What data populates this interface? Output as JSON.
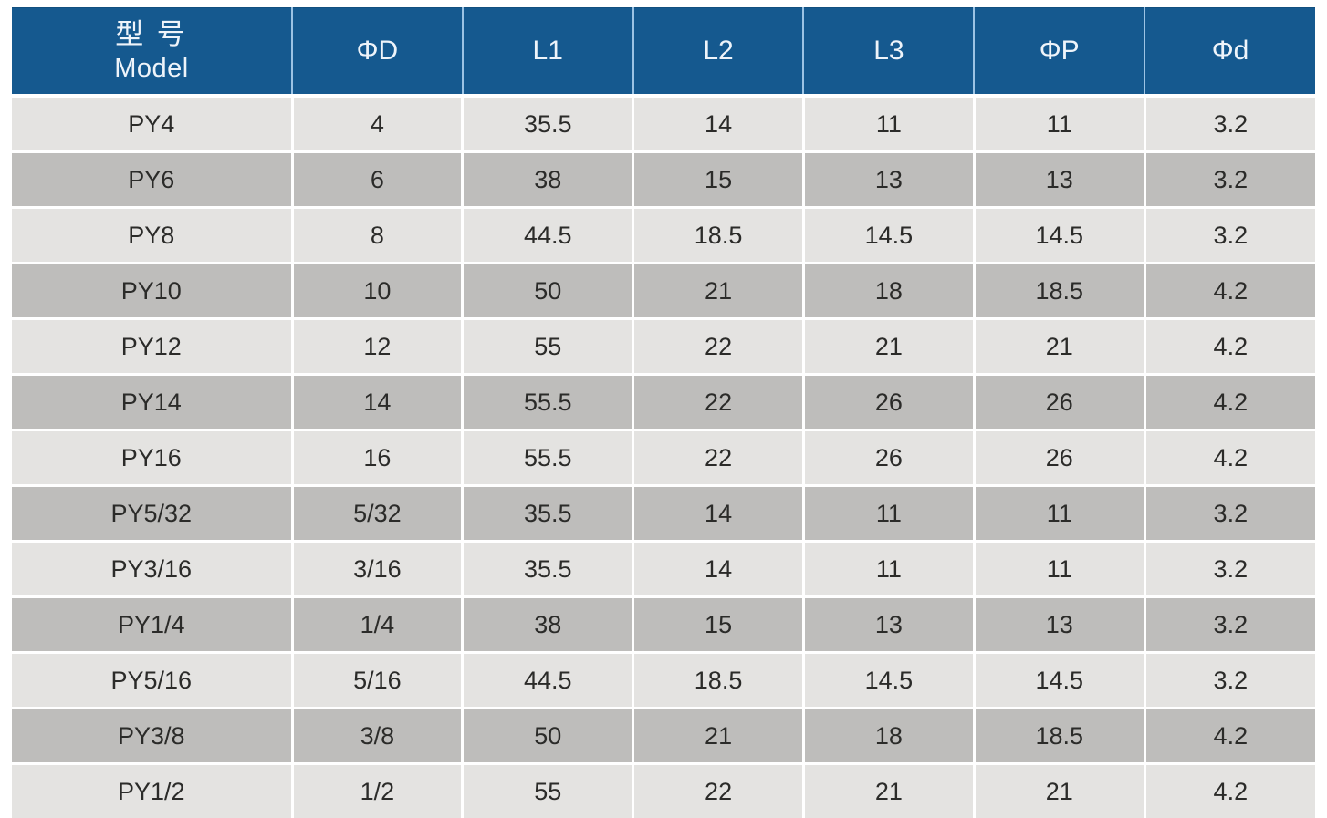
{
  "table": {
    "header": {
      "model_zh": "型 号",
      "model_en": "Model",
      "columns": [
        "ΦD",
        "L1",
        "L2",
        "L3",
        "ΦP",
        "Φd"
      ]
    },
    "rows": [
      {
        "model": "PY4",
        "values": [
          "4",
          "35.5",
          "14",
          "11",
          "11",
          "3.2"
        ]
      },
      {
        "model": "PY6",
        "values": [
          "6",
          "38",
          "15",
          "13",
          "13",
          "3.2"
        ]
      },
      {
        "model": "PY8",
        "values": [
          "8",
          "44.5",
          "18.5",
          "14.5",
          "14.5",
          "3.2"
        ]
      },
      {
        "model": "PY10",
        "values": [
          "10",
          "50",
          "21",
          "18",
          "18.5",
          "4.2"
        ]
      },
      {
        "model": "PY12",
        "values": [
          "12",
          "55",
          "22",
          "21",
          "21",
          "4.2"
        ]
      },
      {
        "model": "PY14",
        "values": [
          "14",
          "55.5",
          "22",
          "26",
          "26",
          "4.2"
        ]
      },
      {
        "model": "PY16",
        "values": [
          "16",
          "55.5",
          "22",
          "26",
          "26",
          "4.2"
        ]
      },
      {
        "model": "PY5/32",
        "values": [
          "5/32",
          "35.5",
          "14",
          "11",
          "11",
          "3.2"
        ]
      },
      {
        "model": "PY3/16",
        "values": [
          "3/16",
          "35.5",
          "14",
          "11",
          "11",
          "3.2"
        ]
      },
      {
        "model": "PY1/4",
        "values": [
          "1/4",
          "38",
          "15",
          "13",
          "13",
          "3.2"
        ]
      },
      {
        "model": "PY5/16",
        "values": [
          "5/16",
          "44.5",
          "18.5",
          "14.5",
          "14.5",
          "3.2"
        ]
      },
      {
        "model": "PY3/8",
        "values": [
          "3/8",
          "50",
          "21",
          "18",
          "18.5",
          "4.2"
        ]
      },
      {
        "model": "PY1/2",
        "values": [
          "1/2",
          "55",
          "22",
          "21",
          "21",
          "4.2"
        ]
      }
    ]
  },
  "colors": {
    "header_bg": "#15598f",
    "header_text": "#eef4fa",
    "header_divider": "#9cc3e4",
    "row_light": "#e4e3e1",
    "row_dark": "#bebdbb",
    "cell_text": "#2b2b29",
    "separator": "#ffffff"
  }
}
